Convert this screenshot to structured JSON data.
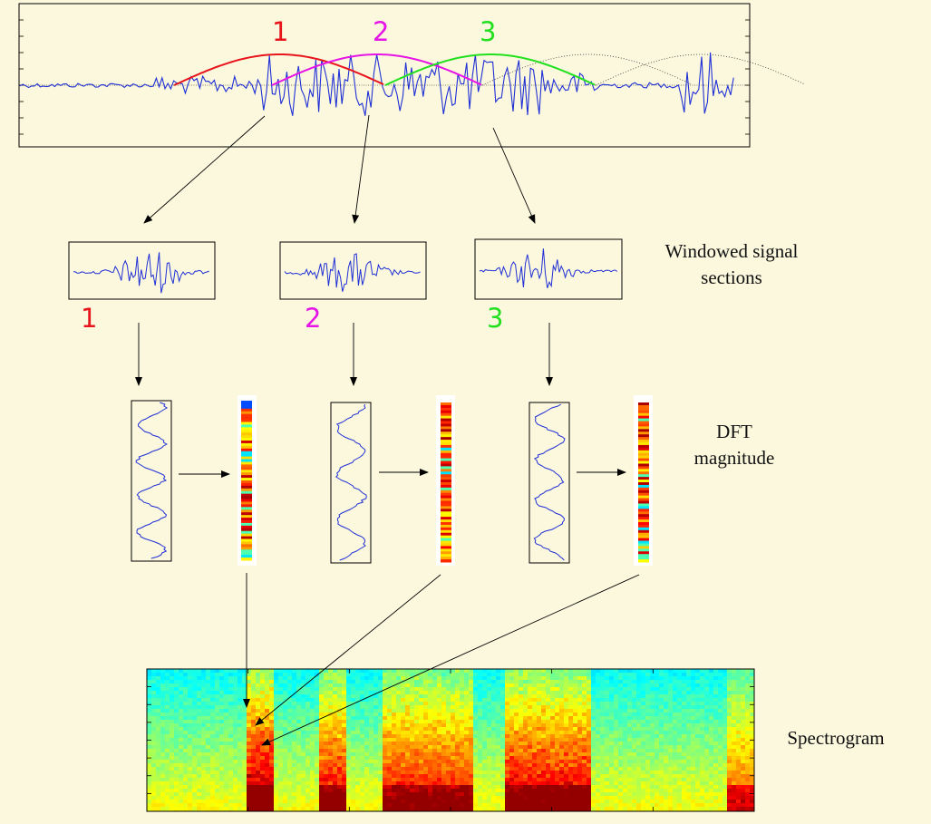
{
  "labels": {
    "windowed_line1": "Windowed signal",
    "windowed_line2": "sections",
    "dft_line1": "DFT",
    "dft_line2": "magnitude",
    "spectrogram": "Spectrogram"
  },
  "window_numbers": [
    "1",
    "2",
    "3"
  ],
  "colors": {
    "background": "#fbf8dd",
    "signal": "#1f2fd6",
    "window_1": "#e8141c",
    "window_2": "#e614e6",
    "window_3": "#22e01e",
    "axes": "#000000"
  },
  "diagram": {
    "stages": [
      "full signal with windows",
      "windowed signal sections",
      "DFT magnitude",
      "spectrogram"
    ],
    "windows": 3
  }
}
